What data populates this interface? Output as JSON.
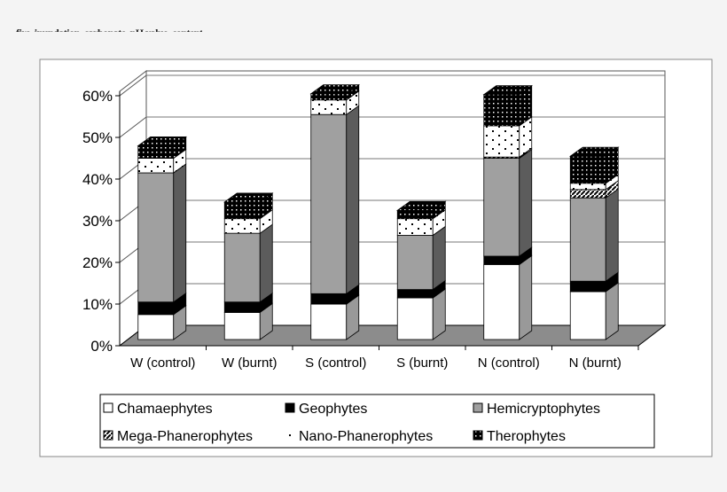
{
  "caption": "fire, inundation, carbonate, pH value, content",
  "chart_data": {
    "type": "bar",
    "stacked": true,
    "three_d": true,
    "categories": [
      "W (control)",
      "W (burnt)",
      "S (control)",
      "S (burnt)",
      "N (control)",
      "N (burnt)"
    ],
    "yticks": [
      "0%",
      "10%",
      "20%",
      "30%",
      "40%",
      "50%",
      "60%"
    ],
    "ylim": [
      0,
      60
    ],
    "grid": true,
    "legend_position": "bottom",
    "series": [
      {
        "name": "Chamaephytes",
        "values": [
          6,
          6.5,
          8.5,
          10,
          18,
          11.5
        ],
        "fill": "#ffffff",
        "pattern": "solid"
      },
      {
        "name": "Geophytes",
        "values": [
          3,
          2.5,
          2.5,
          2,
          2,
          2.5
        ],
        "fill": "#000000",
        "pattern": "solid"
      },
      {
        "name": "Hemicryptophytes",
        "values": [
          31,
          16.5,
          43,
          13,
          23.5,
          20
        ],
        "fill": "#a0a0a0",
        "pattern": "solid"
      },
      {
        "name": "Mega-Phanerophytes",
        "values": [
          0,
          0,
          0,
          0,
          0.3,
          2
        ],
        "fill": "#000000",
        "pattern": "diagonal-hatch"
      },
      {
        "name": "Nano-Phanerophytes",
        "values": [
          3.5,
          3.5,
          3.5,
          4,
          7.5,
          1.5
        ],
        "fill": "#ffffff",
        "pattern": "sparse-dots"
      },
      {
        "name": "Therophytes",
        "values": [
          3,
          4,
          1.5,
          2,
          7.5,
          6.5
        ],
        "fill": "#000000",
        "pattern": "white-dots"
      }
    ]
  }
}
